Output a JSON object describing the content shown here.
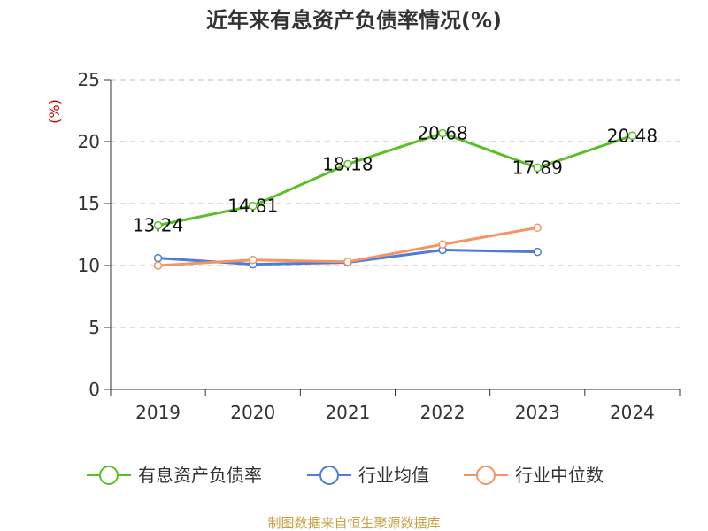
{
  "chart_data": {
    "type": "line",
    "title": "近年来有息资产负债率情况(%)",
    "ylabel": "(%)",
    "xlabel": "",
    "categories": [
      "2019",
      "2020",
      "2021",
      "2022",
      "2023",
      "2024"
    ],
    "ylim": [
      0,
      25
    ],
    "yticks": [
      0,
      5,
      10,
      15,
      20,
      25
    ],
    "grid": "horizontal dashed",
    "legend_position": "bottom",
    "series": [
      {
        "name": "有息资产负债率",
        "color": "#5cbf2a",
        "values": [
          13.24,
          14.81,
          18.18,
          20.68,
          17.89,
          20.48
        ],
        "labels": [
          "13.24",
          "14.81",
          "18.18",
          "20.68",
          "17.89",
          "20.48"
        ]
      },
      {
        "name": "行业均值",
        "color": "#4f7bd9",
        "values": [
          10.6,
          10.1,
          10.25,
          11.25,
          11.1,
          null
        ]
      },
      {
        "name": "行业中位数",
        "color": "#f59460",
        "values": [
          10.0,
          10.45,
          10.3,
          11.7,
          13.05,
          null
        ]
      }
    ]
  },
  "source": "制图数据来自恒生聚源数据库"
}
